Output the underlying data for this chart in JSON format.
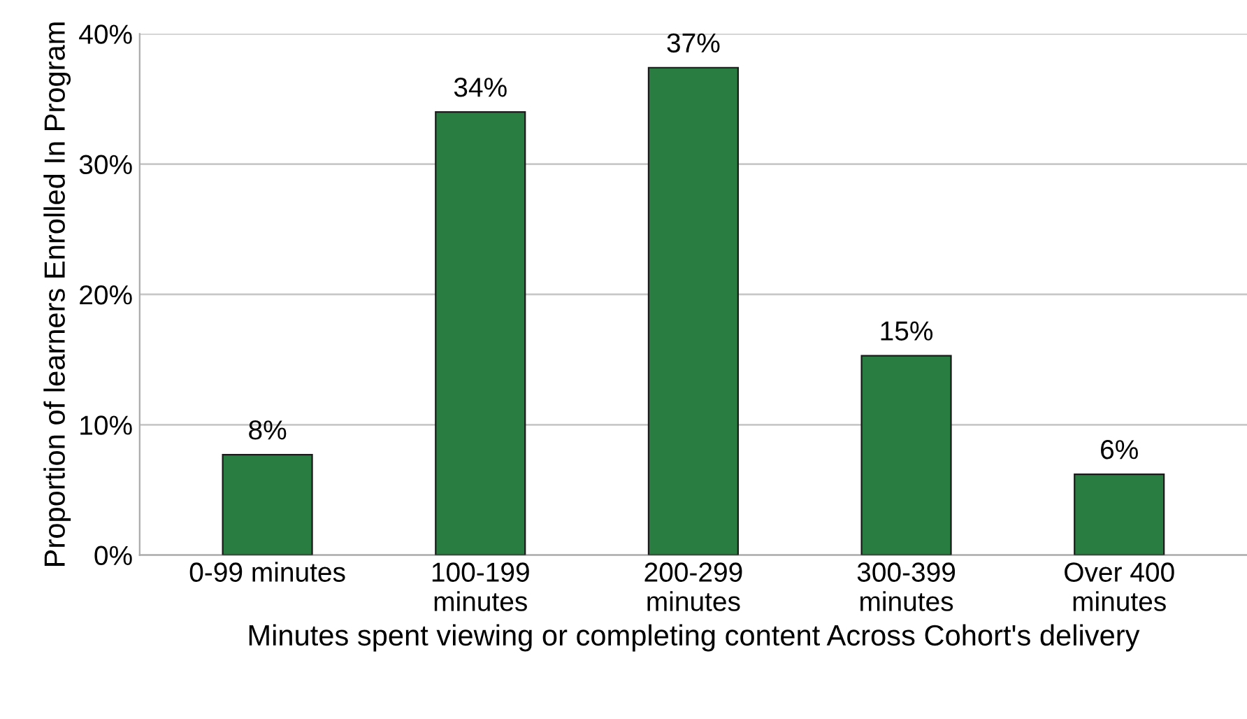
{
  "chart_data": {
    "type": "bar",
    "categories": [
      "0-99 minutes",
      "100-199\nminutes",
      "200-299\nminutes",
      "300-399\nminutes",
      "Over 400\nminutes"
    ],
    "values": [
      7.7,
      34,
      37.4,
      15.3,
      6.2
    ],
    "value_labels": [
      "8%",
      "34%",
      "37%",
      "15%",
      "6%"
    ],
    "color": "#2a7d40",
    "ylabel": "Proportion of learners Enrolled In Program",
    "xlabel": "Minutes spent viewing or completing content Across Cohort's delivery",
    "ylim": [
      0,
      40
    ],
    "yticks": [
      {
        "value": 0,
        "label": "0%"
      },
      {
        "value": 10,
        "label": "10%"
      },
      {
        "value": 20,
        "label": "20%"
      },
      {
        "value": 30,
        "label": "30%"
      },
      {
        "value": 40,
        "label": "40%"
      }
    ],
    "grid": "y"
  }
}
